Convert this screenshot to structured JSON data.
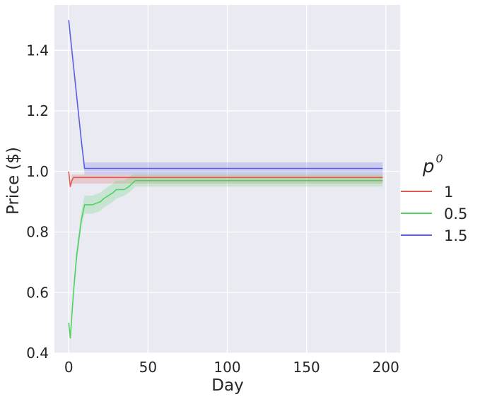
{
  "chart_data": {
    "type": "line",
    "xlabel": "Day",
    "ylabel": "Price ($)",
    "xlim": [
      -9,
      209
    ],
    "ylim": [
      0.4,
      1.55
    ],
    "xticks": [
      0,
      50,
      100,
      150,
      200
    ],
    "xtick_labels": [
      "0",
      "50",
      "100",
      "150",
      "200"
    ],
    "yticks": [
      0.4,
      0.6,
      0.8,
      1.0,
      1.2,
      1.4
    ],
    "ytick_labels": [
      "0.4",
      "0.6",
      "0.8",
      "1.0",
      "1.2",
      "1.4"
    ],
    "grid": true,
    "background": "#eaeaf2",
    "legend": {
      "title_base": "p",
      "title_sup": "0",
      "placement": "outside-right"
    },
    "series": [
      {
        "name": "1",
        "color": "#e05a4f",
        "x": [
          0,
          1,
          2,
          3,
          5,
          10,
          20,
          30,
          40,
          60,
          80,
          100,
          120,
          150,
          180,
          198
        ],
        "y": [
          1.0,
          0.95,
          0.97,
          0.98,
          0.98,
          0.98,
          0.98,
          0.98,
          0.98,
          0.98,
          0.98,
          0.98,
          0.98,
          0.98,
          0.98,
          0.98
        ],
        "lower": [
          1.0,
          0.95,
          0.96,
          0.96,
          0.96,
          0.96,
          0.96,
          0.96,
          0.96,
          0.96,
          0.96,
          0.96,
          0.96,
          0.96,
          0.96,
          0.96
        ],
        "upper": [
          1.0,
          0.95,
          0.99,
          0.99,
          0.99,
          0.99,
          0.99,
          0.99,
          0.99,
          0.99,
          0.99,
          0.99,
          0.99,
          0.99,
          0.99,
          0.99
        ]
      },
      {
        "name": "0.5",
        "color": "#4fd160",
        "x": [
          0,
          1,
          3,
          5,
          8,
          10,
          15,
          20,
          22,
          25,
          28,
          30,
          35,
          38,
          40,
          42,
          45,
          50,
          100,
          150,
          198
        ],
        "y": [
          0.5,
          0.45,
          0.6,
          0.72,
          0.84,
          0.89,
          0.89,
          0.9,
          0.91,
          0.92,
          0.93,
          0.94,
          0.94,
          0.95,
          0.96,
          0.97,
          0.97,
          0.97,
          0.97,
          0.97,
          0.97
        ],
        "lower": [
          0.5,
          0.45,
          0.58,
          0.7,
          0.82,
          0.86,
          0.86,
          0.87,
          0.88,
          0.89,
          0.9,
          0.91,
          0.92,
          0.93,
          0.94,
          0.95,
          0.95,
          0.95,
          0.95,
          0.95,
          0.95
        ],
        "upper": [
          0.5,
          0.45,
          0.62,
          0.75,
          0.87,
          0.92,
          0.92,
          0.93,
          0.94,
          0.95,
          0.96,
          0.97,
          0.97,
          0.98,
          0.99,
          0.99,
          0.99,
          0.99,
          0.99,
          0.99,
          0.99
        ]
      },
      {
        "name": "1.5",
        "color": "#5a5ee0",
        "x": [
          0,
          2,
          4,
          6,
          8,
          10,
          20,
          50,
          100,
          150,
          198
        ],
        "y": [
          1.5,
          1.4,
          1.3,
          1.2,
          1.1,
          1.01,
          1.01,
          1.01,
          1.01,
          1.01,
          1.01
        ],
        "lower": [
          1.5,
          1.4,
          1.3,
          1.2,
          1.1,
          0.99,
          0.99,
          0.99,
          0.99,
          0.99,
          0.99
        ],
        "upper": [
          1.5,
          1.4,
          1.3,
          1.2,
          1.1,
          1.03,
          1.03,
          1.03,
          1.03,
          1.03,
          1.03
        ]
      }
    ]
  }
}
